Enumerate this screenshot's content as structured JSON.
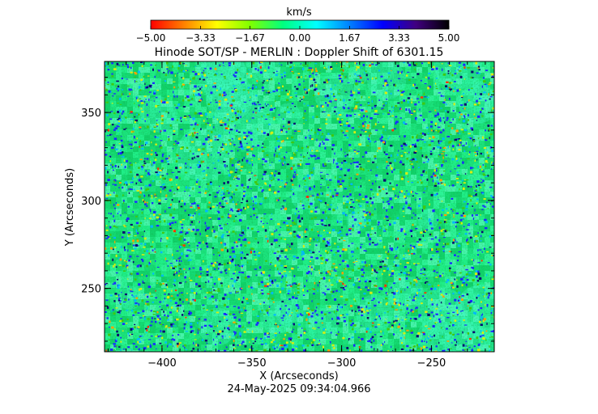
{
  "chart_data": {
    "type": "heatmap",
    "title": "Hinode SOT/SP - MERLIN : Doppler Shift of 6301.15",
    "xlabel": "X (Arcseconds)",
    "ylabel": "Y (Arcseconds)",
    "timestamp": "24-May-2025 09:34:04.966",
    "xlim": [
      -432,
      -215
    ],
    "ylim": [
      214,
      379
    ],
    "xticks": [
      {
        "value": -400,
        "label": "−400"
      },
      {
        "value": -350,
        "label": "−350"
      },
      {
        "value": -300,
        "label": "−300"
      },
      {
        "value": -250,
        "label": "−250"
      }
    ],
    "yticks": [
      {
        "value": 250,
        "label": "250"
      },
      {
        "value": 300,
        "label": "300"
      },
      {
        "value": 350,
        "label": "350"
      }
    ],
    "colorbar": {
      "label": "km/s",
      "range": [
        -5.0,
        5.0
      ],
      "ticks": [
        {
          "value": -5.0,
          "label": "−5.00"
        },
        {
          "value": -3.33,
          "label": "−3.33"
        },
        {
          "value": -1.67,
          "label": "−1.67"
        },
        {
          "value": 0.0,
          "label": "0.00"
        },
        {
          "value": 1.67,
          "label": "1.67"
        },
        {
          "value": 3.33,
          "label": "3.33"
        },
        {
          "value": 5.0,
          "label": "5.00"
        }
      ],
      "colors": [
        "#ff0000",
        "#ff8000",
        "#ffff00",
        "#80ff00",
        "#00ff80",
        "#00ffff",
        "#0080ff",
        "#0000ff",
        "#400080",
        "#000000"
      ]
    }
  }
}
